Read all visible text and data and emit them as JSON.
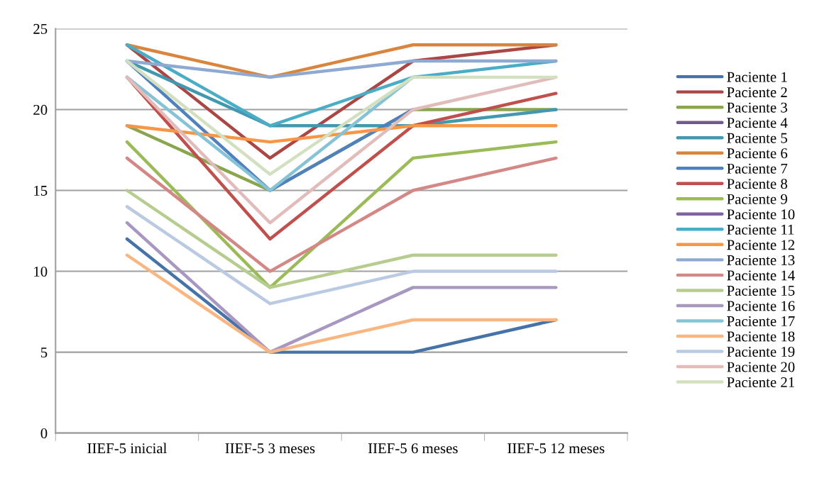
{
  "chart_data": {
    "type": "line",
    "categories": [
      "IIEF-5 inicial",
      "IIEF-5 3 meses",
      "IIEF-5 6 meses",
      "IIEF-5 12 meses"
    ],
    "ylim": [
      0,
      25
    ],
    "yticks": [
      0,
      5,
      10,
      15,
      20,
      25
    ],
    "grid": "y",
    "legend": "right",
    "marker": "none",
    "line_style": "solid",
    "series": [
      {
        "name": "Paciente 1",
        "color": "#4572a7",
        "values": [
          12,
          5,
          5,
          7
        ]
      },
      {
        "name": "Paciente 2",
        "color": "#aa4643",
        "values": [
          24,
          17,
          23,
          24
        ]
      },
      {
        "name": "Paciente 3",
        "color": "#89a54e",
        "values": [
          19,
          15,
          20,
          20
        ]
      },
      {
        "name": "Paciente 4",
        "color": "#71588f",
        "values": [
          null,
          null,
          null,
          null
        ]
      },
      {
        "name": "Paciente 5",
        "color": "#4198af",
        "values": [
          23,
          19,
          19,
          20
        ]
      },
      {
        "name": "Paciente 6",
        "color": "#db843d",
        "values": [
          24,
          22,
          24,
          24
        ]
      },
      {
        "name": "Paciente 7",
        "color": "#4f81bd",
        "values": [
          23,
          15,
          20,
          null
        ]
      },
      {
        "name": "Paciente 8",
        "color": "#c0504d",
        "values": [
          22,
          12,
          19,
          21
        ]
      },
      {
        "name": "Paciente 9",
        "color": "#9bbb59",
        "values": [
          18,
          9,
          17,
          18
        ]
      },
      {
        "name": "Paciente 10",
        "color": "#8064a2",
        "values": [
          null,
          null,
          null,
          null
        ]
      },
      {
        "name": "Paciente 11",
        "color": "#4bacc6",
        "values": [
          24,
          19,
          22,
          23
        ]
      },
      {
        "name": "Paciente 12",
        "color": "#f79646",
        "values": [
          19,
          18,
          19,
          19
        ]
      },
      {
        "name": "Paciente 13",
        "color": "#8ea9d2",
        "values": [
          23,
          22,
          23,
          23
        ]
      },
      {
        "name": "Paciente 14",
        "color": "#d38885",
        "values": [
          17,
          10,
          15,
          17
        ]
      },
      {
        "name": "Paciente 15",
        "color": "#b6cd8f",
        "values": [
          15,
          9,
          11,
          11
        ]
      },
      {
        "name": "Paciente 16",
        "color": "#a897c0",
        "values": [
          13,
          5,
          9,
          9
        ]
      },
      {
        "name": "Paciente 17",
        "color": "#87c3d6",
        "values": [
          22,
          15,
          22,
          null
        ]
      },
      {
        "name": "Paciente 18",
        "color": "#f9b681",
        "values": [
          11,
          5,
          7,
          7
        ]
      },
      {
        "name": "Paciente 19",
        "color": "#b9cae2",
        "values": [
          14,
          8,
          10,
          10
        ]
      },
      {
        "name": "Paciente 20",
        "color": "#e1bcba",
        "values": [
          22,
          13,
          20,
          22
        ]
      },
      {
        "name": "Paciente 21",
        "color": "#d2e0c0",
        "values": [
          23,
          16,
          22,
          22
        ]
      }
    ]
  }
}
